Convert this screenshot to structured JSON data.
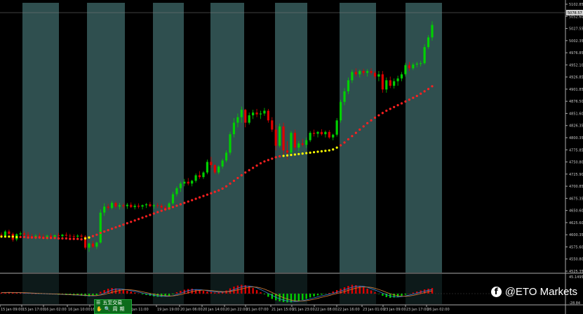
{
  "chart_data": {
    "type": "candlestick",
    "price_axis": {
      "ticks": [
        "5102.85",
        "5052.60",
        "5027.55",
        "5002.35",
        "4976.85",
        "4952.10",
        "4926.85",
        "4901.85",
        "4876.50",
        "4851.60",
        "4826.35",
        "4800.35",
        "4775.85",
        "4750.80",
        "4725.90",
        "4700.85",
        "4675.35",
        "4650.60",
        "4625.60",
        "4600.35",
        "4575.60",
        "4550.80",
        "4525.35"
      ],
      "current_price": "5078.57"
    },
    "macd_axis": {
      "ticks": [
        "45.1495",
        "-28.84"
      ]
    },
    "time_axis": {
      "ticks": [
        "15 Jan 09:00",
        "15 Jan 17:00",
        "16 Jan 02:00",
        "16 Jan 10:00",
        "16",
        "17 Jan 11:00",
        "19 Jan 19:00",
        "20 Jan 06:00",
        "20 Jan 14:00",
        "20 Jan 22:00",
        "21 Jan 07:00",
        "21 Jan 15:00",
        "21 Jan 23:00",
        "22 Jan 08:00",
        "22 Jan 16:00",
        "23 Jan 01:00",
        "23 Jan 09:00",
        "23 Jan 17:00",
        "26 Jan 02:00"
      ]
    },
    "candles_ohlc": [
      [
        4607,
        4612,
        4600,
        4606
      ],
      [
        4605,
        4617,
        4601,
        4614
      ],
      [
        4614,
        4618,
        4606,
        4609
      ],
      [
        4609,
        4612,
        4592,
        4596
      ],
      [
        4597,
        4610,
        4593,
        4608
      ],
      [
        4608,
        4614,
        4602,
        4610
      ],
      [
        4610,
        4615,
        4604,
        4607
      ],
      [
        4607,
        4613,
        4600,
        4604
      ],
      [
        4604,
        4609,
        4598,
        4602
      ],
      [
        4602,
        4608,
        4597,
        4605
      ],
      [
        4605,
        4611,
        4600,
        4603
      ],
      [
        4603,
        4608,
        4598,
        4601
      ],
      [
        4601,
        4607,
        4596,
        4605
      ],
      [
        4605,
        4610,
        4600,
        4602
      ],
      [
        4602,
        4607,
        4597,
        4606
      ],
      [
        4606,
        4611,
        4601,
        4604
      ],
      [
        4604,
        4609,
        4599,
        4607
      ],
      [
        4607,
        4612,
        4602,
        4605
      ],
      [
        4605,
        4609,
        4600,
        4604
      ],
      [
        4604,
        4608,
        4599,
        4603
      ],
      [
        4603,
        4608,
        4598,
        4605
      ],
      [
        4605,
        4609,
        4600,
        4603
      ],
      [
        4603,
        4606,
        4575,
        4579
      ],
      [
        4579,
        4590,
        4570,
        4588
      ],
      [
        4588,
        4594,
        4578,
        4581
      ],
      [
        4581,
        4592,
        4576,
        4590
      ],
      [
        4590,
        4662,
        4588,
        4655
      ],
      [
        4655,
        4675,
        4648,
        4668
      ],
      [
        4668,
        4674,
        4660,
        4665
      ],
      [
        4665,
        4680,
        4662,
        4676
      ],
      [
        4676,
        4679,
        4664,
        4668
      ],
      [
        4668,
        4676,
        4662,
        4671
      ],
      [
        4671,
        4675,
        4664,
        4669
      ],
      [
        4669,
        4676,
        4663,
        4672
      ],
      [
        4672,
        4677,
        4665,
        4667
      ],
      [
        4667,
        4674,
        4662,
        4670
      ],
      [
        4670,
        4675,
        4664,
        4668
      ],
      [
        4668,
        4673,
        4662,
        4671
      ],
      [
        4671,
        4676,
        4665,
        4673
      ],
      [
        4673,
        4678,
        4667,
        4669
      ],
      [
        4669,
        4674,
        4663,
        4671
      ],
      [
        4671,
        4676,
        4665,
        4670
      ],
      [
        4670,
        4674,
        4663,
        4666
      ],
      [
        4666,
        4671,
        4658,
        4662
      ],
      [
        4662,
        4678,
        4660,
        4675
      ],
      [
        4675,
        4700,
        4672,
        4695
      ],
      [
        4695,
        4712,
        4690,
        4708
      ],
      [
        4708,
        4722,
        4700,
        4718
      ],
      [
        4718,
        4728,
        4712,
        4722
      ],
      [
        4722,
        4730,
        4714,
        4718
      ],
      [
        4718,
        4726,
        4712,
        4724
      ],
      [
        4724,
        4740,
        4720,
        4736
      ],
      [
        4736,
        4745,
        4728,
        4732
      ],
      [
        4732,
        4745,
        4728,
        4742
      ],
      [
        4742,
        4770,
        4738,
        4765
      ],
      [
        4765,
        4776,
        4752,
        4758
      ],
      [
        4758,
        4760,
        4738,
        4742
      ],
      [
        4742,
        4758,
        4738,
        4755
      ],
      [
        4755,
        4772,
        4750,
        4768
      ],
      [
        4768,
        4790,
        4764,
        4785
      ],
      [
        4785,
        4830,
        4780,
        4825
      ],
      [
        4825,
        4860,
        4818,
        4850
      ],
      [
        4850,
        4870,
        4840,
        4862
      ],
      [
        4862,
        4885,
        4850,
        4878
      ],
      [
        4878,
        4880,
        4840,
        4850
      ],
      [
        4850,
        4872,
        4846,
        4866
      ],
      [
        4866,
        4878,
        4858,
        4872
      ],
      [
        4872,
        4880,
        4862,
        4868
      ],
      [
        4868,
        4876,
        4858,
        4870
      ],
      [
        4870,
        4882,
        4865,
        4876
      ],
      [
        4876,
        4880,
        4850,
        4855
      ],
      [
        4855,
        4862,
        4830,
        4835
      ],
      [
        4835,
        4845,
        4790,
        4800
      ],
      [
        4800,
        4848,
        4796,
        4842
      ],
      [
        4842,
        4850,
        4780,
        4790
      ],
      [
        4790,
        4810,
        4770,
        4785
      ],
      [
        4785,
        4832,
        4780,
        4828
      ],
      [
        4828,
        4835,
        4790,
        4796
      ],
      [
        4796,
        4810,
        4788,
        4805
      ],
      [
        4805,
        4815,
        4798,
        4802
      ],
      [
        4802,
        4818,
        4795,
        4812
      ],
      [
        4812,
        4832,
        4808,
        4828
      ],
      [
        4828,
        4835,
        4820,
        4826
      ],
      [
        4826,
        4832,
        4818,
        4830
      ],
      [
        4830,
        4836,
        4822,
        4825
      ],
      [
        4825,
        4833,
        4818,
        4830
      ],
      [
        4830,
        4834,
        4815,
        4818
      ],
      [
        4818,
        4826,
        4812,
        4824
      ],
      [
        4824,
        4860,
        4820,
        4855
      ],
      [
        4855,
        4900,
        4850,
        4895
      ],
      [
        4895,
        4925,
        4888,
        4918
      ],
      [
        4918,
        4948,
        4912,
        4942
      ],
      [
        4942,
        4965,
        4936,
        4960
      ],
      [
        4960,
        4968,
        4950,
        4955
      ],
      [
        4955,
        4965,
        4948,
        4962
      ],
      [
        4962,
        4967,
        4952,
        4958
      ],
      [
        4958,
        4966,
        4950,
        4962
      ],
      [
        4962,
        4968,
        4954,
        4958
      ],
      [
        4958,
        4962,
        4945,
        4950
      ],
      [
        4950,
        4962,
        4940,
        4955
      ],
      [
        4955,
        4962,
        4915,
        4922
      ],
      [
        4922,
        4948,
        4915,
        4942
      ],
      [
        4942,
        4950,
        4925,
        4930
      ],
      [
        4930,
        4946,
        4924,
        4940
      ],
      [
        4940,
        4952,
        4930,
        4946
      ],
      [
        4946,
        4960,
        4940,
        4955
      ],
      [
        4955,
        4980,
        4950,
        4975
      ],
      [
        4975,
        4982,
        4962,
        4968
      ],
      [
        4968,
        4980,
        4964,
        4976
      ],
      [
        4976,
        4982,
        4970,
        4978
      ],
      [
        4978,
        4984,
        4972,
        4979
      ],
      [
        4979,
        5020,
        4976,
        5014
      ],
      [
        5014,
        5040,
        5010,
        5035
      ],
      [
        5035,
        5070,
        5028,
        5062
      ]
    ],
    "sar_points": [
      4603,
      4603,
      4603,
      4603,
      4602,
      4602,
      4602,
      4601,
      4601,
      4601,
      4601,
      4600,
      4600,
      4600,
      4600,
      4599,
      4599,
      4599,
      4598,
      4598,
      4598,
      4597,
      4599,
      4601,
      4604,
      4607,
      4611,
      4614,
      4617,
      4620,
      4623,
      4626,
      4629,
      4632,
      4635,
      4638,
      4641,
      4644,
      4647,
      4650,
      4653,
      4656,
      4659,
      4662,
      4664,
      4667,
      4670,
      4673,
      4676,
      4679,
      4682,
      4685,
      4688,
      4691,
      4694,
      4697,
      4700,
      4703,
      4707,
      4712,
      4718,
      4724,
      4730,
      4736,
      4742,
      4747,
      4752,
      4757,
      4762,
      4766,
      4769,
      4772,
      4775,
      4777,
      4778,
      4779,
      4780,
      4781,
      4782,
      4783,
      4784,
      4785,
      4786,
      4787,
      4788,
      4789,
      4790,
      4792,
      4796,
      4801,
      4807,
      4814,
      4821,
      4828,
      4835,
      4842,
      4849,
      4855,
      4861,
      4866,
      4871,
      4876,
      4880,
      4884,
      4888,
      4892,
      4896,
      4900,
      4904,
      4908,
      4913,
      4918,
      4923,
      4929
    ],
    "macd_histogram": [
      3,
      4,
      4,
      3,
      2,
      2,
      1,
      1,
      0,
      0,
      -1,
      -1,
      -1,
      -2,
      -2,
      -3,
      -3,
      -4,
      -4,
      -5,
      -5,
      -6,
      -7,
      -8,
      -6,
      -4,
      5,
      10,
      14,
      16,
      15,
      13,
      10,
      8,
      6,
      3,
      1,
      -2,
      -4,
      -6,
      -8,
      -9,
      -9,
      -8,
      -6,
      -2,
      4,
      8,
      11,
      13,
      14,
      12,
      10,
      8,
      6,
      5,
      3,
      4,
      6,
      9,
      15,
      20,
      23,
      25,
      24,
      21,
      16,
      10,
      4,
      -2,
      -9,
      -15,
      -19,
      -22,
      -24,
      -25,
      -25,
      -23,
      -21,
      -18,
      -15,
      -11,
      -8,
      -5,
      -3,
      -1,
      2,
      6,
      10,
      14,
      18,
      22,
      25,
      24,
      22,
      18,
      14,
      9,
      4,
      -1,
      -6,
      -10,
      -12,
      -11,
      -9,
      -6,
      -3,
      0,
      3,
      6,
      9,
      12,
      14,
      16
    ],
    "colors": {
      "background_black": "#000000",
      "band_teal": "#2f4f4f",
      "bull_candle": "#00d000",
      "bear_candle": "#e00000",
      "sar_red": "#ff2020",
      "sar_yellow": "#ffff00",
      "axis_text": "#c8c8c8",
      "macd_blue": "#3a7fd6",
      "macd_orange": "#d6803a"
    }
  },
  "toolbar": {
    "row1": [
      "☰",
      "五至交易"
    ],
    "row2": [
      "✋",
      "🔍",
      "周",
      "期"
    ]
  },
  "watermark": {
    "text": "@ETO Markets",
    "icon": "facebook-icon"
  }
}
